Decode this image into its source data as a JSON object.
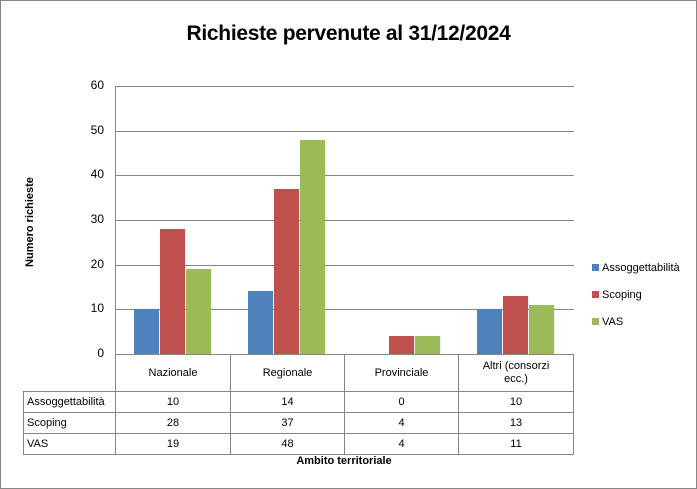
{
  "chart_data": {
    "type": "bar",
    "title": "Richieste pervenute al 31/12/2024",
    "xlabel": "Ambito territoriale",
    "ylabel": "Numero richieste",
    "ylim": [
      0,
      60
    ],
    "yticks": [
      "0",
      "10",
      "20",
      "30",
      "40",
      "50",
      "60"
    ],
    "grid": true,
    "legend_position": "right",
    "categories": [
      "Nazionale",
      "Regionale",
      "Provinciale",
      "Altri (consorzi ecc.)"
    ],
    "series": [
      {
        "name": "Assoggettabilità",
        "color": "#4F81BD",
        "values": [
          10,
          14,
          0,
          10
        ]
      },
      {
        "name": "Scoping",
        "color": "#C0504D",
        "values": [
          28,
          37,
          4,
          13
        ]
      },
      {
        "name": "VAS",
        "color": "#9BBB59",
        "values": [
          19,
          48,
          4,
          11
        ]
      }
    ],
    "data_table": true
  },
  "table": {
    "headers": [
      "Nazionale",
      "Regionale",
      "Provinciale",
      "Altri (consorzi ecc.)"
    ],
    "rows": [
      {
        "label": "Assoggettabilità",
        "values": [
          "10",
          "14",
          "0",
          "10"
        ]
      },
      {
        "label": "Scoping",
        "values": [
          "28",
          "37",
          "4",
          "13"
        ]
      },
      {
        "label": "VAS",
        "values": [
          "19",
          "48",
          "4",
          "11"
        ]
      }
    ]
  }
}
